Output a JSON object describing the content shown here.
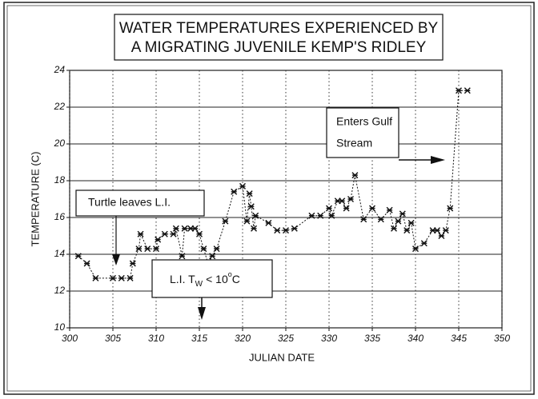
{
  "chart_data": {
    "type": "line",
    "title_lines": [
      "WATER TEMPERATURES EXPERIENCED BY",
      "A MIGRATING JUVENILE KEMP'S RIDLEY"
    ],
    "xlabel": "JULIAN DATE",
    "ylabel": "TEMPERATURE (C)",
    "xlim": [
      300,
      350
    ],
    "xticks": [
      300,
      305,
      310,
      315,
      320,
      325,
      330,
      335,
      340,
      345,
      350
    ],
    "ylim": [
      10,
      24
    ],
    "yticks": [
      10,
      12,
      14,
      16,
      18,
      20,
      22,
      24
    ],
    "grid": true,
    "color": "#111",
    "x": [
      301,
      302,
      303,
      305,
      306,
      307,
      307.3,
      308,
      308.2,
      309,
      310,
      310.2,
      311,
      312,
      312.3,
      313,
      313.3,
      314,
      314.5,
      315,
      315.5,
      316,
      316.5,
      317,
      318,
      319,
      320,
      320.5,
      320.8,
      321,
      321.3,
      321.5,
      323,
      324,
      325,
      326,
      328,
      329,
      330,
      330.3,
      331,
      331.5,
      332,
      332.5,
      333,
      334,
      335,
      336,
      337,
      337.5,
      338,
      338.5,
      339,
      339.5,
      340,
      341,
      342,
      342.5,
      343,
      343.5,
      344,
      345,
      346
    ],
    "values": [
      13.9,
      13.5,
      12.7,
      12.7,
      12.7,
      12.7,
      13.5,
      14.3,
      15.1,
      14.3,
      14.3,
      14.8,
      15.1,
      15.1,
      15.4,
      13.9,
      15.4,
      15.4,
      15.4,
      15.1,
      14.3,
      13.5,
      13.9,
      14.3,
      15.8,
      17.4,
      17.7,
      15.8,
      17.3,
      16.6,
      15.4,
      16.1,
      15.7,
      15.3,
      15.3,
      15.4,
      16.1,
      16.1,
      16.5,
      16.1,
      16.9,
      16.9,
      16.5,
      17.0,
      18.3,
      15.9,
      16.5,
      15.9,
      16.4,
      15.4,
      15.8,
      16.2,
      15.3,
      15.7,
      14.3,
      14.6,
      15.3,
      15.3,
      15.0,
      15.3,
      16.5,
      22.9,
      22.9
    ],
    "annotations": [
      {
        "lines": [
          "Turtle leaves L.I."
        ]
      },
      {
        "parts": [
          "L.I. T",
          "W",
          "< 10",
          "o",
          "C"
        ]
      },
      {
        "lines": [
          "Enters Gulf",
          "Stream"
        ]
      }
    ]
  }
}
